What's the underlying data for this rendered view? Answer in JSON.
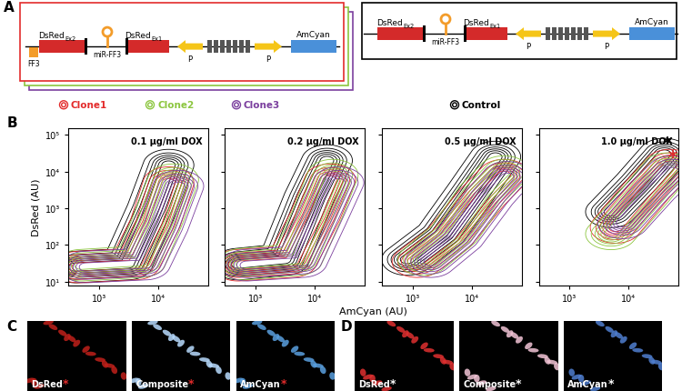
{
  "panel_labels": [
    "A",
    "B",
    "C",
    "D"
  ],
  "diagram": {
    "elements": {
      "utr": "FF3",
      "exon2": {
        "text": "DsRed",
        "sub": "Ex2"
      },
      "mirna": "miR-FF3",
      "exon1": {
        "text": "DsRed",
        "sub": "Ex1"
      },
      "promoter": "P",
      "reporter": "AmCyan"
    },
    "constructs": [
      {
        "name": "Clone1",
        "color": "#e32b2b",
        "utr": true
      },
      {
        "name": "Clone2",
        "color": "#8cc63f",
        "utr": true
      },
      {
        "name": "Clone3",
        "color": "#7b3f9e",
        "utr": true
      },
      {
        "name": "Control",
        "color": "#000000",
        "utr": false
      }
    ]
  },
  "xlabel": "AmCyan (AU)",
  "chart_data": [
    {
      "type": "contour",
      "title": "0.1 µg/ml DOX",
      "ylabel": "DsRed (AU)",
      "log": true,
      "xlim": [
        300,
        70000
      ],
      "ylim": [
        8,
        150000
      ],
      "xticks": [
        {
          "value": 1000,
          "label": "10³"
        },
        {
          "value": 10000,
          "label": "10⁴"
        }
      ],
      "yticks": [
        {
          "value": 10,
          "label": "10¹"
        },
        {
          "value": 100,
          "label": "10²"
        },
        {
          "value": 1000,
          "label": "10³"
        },
        {
          "value": 10000,
          "label": "10⁴"
        },
        {
          "value": 100000,
          "label": "10⁵"
        }
      ],
      "series": [
        {
          "color": "#000000",
          "trend": [
            [
              400,
              25
            ],
            [
              3000,
              30
            ],
            [
              8000,
              1000
            ],
            [
              15000,
              15000
            ]
          ],
          "spread": 0.2
        },
        {
          "color": "#e32b2b",
          "trend": [
            [
              450,
              25
            ],
            [
              4000,
              30
            ],
            [
              9000,
              400
            ],
            [
              15000,
              5000
            ]
          ],
          "spread": 0.2
        },
        {
          "color": "#8cc63f",
          "trend": [
            [
              500,
              28
            ],
            [
              5000,
              35
            ],
            [
              10000,
              500
            ],
            [
              18000,
              6000
            ]
          ],
          "spread": 0.2
        },
        {
          "color": "#7b3f9e",
          "trend": [
            [
              600,
              25
            ],
            [
              6000,
              30
            ],
            [
              12000,
              300
            ],
            [
              22000,
              4000
            ]
          ],
          "spread": 0.2
        }
      ]
    },
    {
      "type": "contour",
      "title": "0.2 µg/ml DOX",
      "log": true,
      "tick_labels": "x",
      "xlim": [
        300,
        70000
      ],
      "ylim": [
        8,
        150000
      ],
      "xticks": [
        {
          "value": 1000,
          "label": "10³"
        },
        {
          "value": 10000,
          "label": "10⁴"
        }
      ],
      "yticks": [
        10,
        100,
        1000,
        10000,
        100000
      ],
      "series": [
        {
          "color": "#000000",
          "trend": [
            [
              500,
              30
            ],
            [
              3000,
              40
            ],
            [
              8000,
              2000
            ],
            [
              16000,
              20000
            ]
          ],
          "spread": 0.2
        },
        {
          "color": "#e32b2b",
          "trend": [
            [
              500,
              28
            ],
            [
              4000,
              35
            ],
            [
              10000,
              600
            ],
            [
              18000,
              6000
            ]
          ],
          "spread": 0.2
        },
        {
          "color": "#8cc63f",
          "trend": [
            [
              600,
              30
            ],
            [
              5000,
              40
            ],
            [
              11000,
              700
            ],
            [
              20000,
              8000
            ]
          ],
          "spread": 0.2
        },
        {
          "color": "#7b3f9e",
          "trend": [
            [
              700,
              28
            ],
            [
              6000,
              35
            ],
            [
              13000,
              500
            ],
            [
              25000,
              5000
            ]
          ],
          "spread": 0.2
        }
      ]
    },
    {
      "type": "contour",
      "title": "0.5 µg/ml DOX",
      "log": true,
      "tick_labels": "x",
      "xlim": [
        300,
        70000
      ],
      "ylim": [
        8,
        150000
      ],
      "xticks": [
        {
          "value": 1000,
          "label": "10³"
        },
        {
          "value": 10000,
          "label": "10⁴"
        }
      ],
      "yticks": [
        10,
        100,
        1000,
        10000,
        100000
      ],
      "series": [
        {
          "color": "#000000",
          "trend": [
            [
              800,
              40
            ],
            [
              3000,
              200
            ],
            [
              10000,
              3000
            ],
            [
              25000,
              25000
            ]
          ],
          "spread": 0.2
        },
        {
          "color": "#e32b2b",
          "trend": [
            [
              1200,
              35
            ],
            [
              4000,
              150
            ],
            [
              15000,
              2000
            ],
            [
              35000,
              8000
            ]
          ],
          "spread": 0.2
        },
        {
          "color": "#8cc63f",
          "trend": [
            [
              1500,
              40
            ],
            [
              5000,
              200
            ],
            [
              15000,
              2500
            ],
            [
              35000,
              10000
            ]
          ],
          "spread": 0.2
        },
        {
          "color": "#7b3f9e",
          "trend": [
            [
              2000,
              35
            ],
            [
              6000,
              150
            ],
            [
              20000,
              2000
            ],
            [
              40000,
              7000
            ]
          ],
          "spread": 0.2
        }
      ]
    },
    {
      "type": "contour",
      "title": "1.0 µg/ml DOX",
      "log": true,
      "tick_labels": "x",
      "xlim": [
        300,
        70000
      ],
      "ylim": [
        8,
        150000
      ],
      "xticks": [
        {
          "value": 1000,
          "label": "10³"
        },
        {
          "value": 10000,
          "label": "10⁴"
        }
      ],
      "yticks": [
        10,
        100,
        1000,
        10000,
        100000
      ],
      "series": [
        {
          "color": "#000000",
          "trend": [
            [
              5000,
              800
            ],
            [
              15000,
              5000
            ],
            [
              40000,
              30000
            ]
          ],
          "spread": 0.2
        },
        {
          "color": "#e32b2b",
          "trend": [
            [
              6000,
              300
            ],
            [
              20000,
              3000
            ],
            [
              50000,
              15000
            ]
          ],
          "spread": 0.2
        },
        {
          "color": "#8cc63f",
          "trend": [
            [
              5000,
              200
            ],
            [
              20000,
              2500
            ],
            [
              45000,
              12000
            ]
          ],
          "spread": 0.2
        },
        {
          "color": "#7b3f9e",
          "trend": [
            [
              8000,
              400
            ],
            [
              25000,
              3000
            ],
            [
              55000,
              10000
            ]
          ],
          "spread": 0.2
        }
      ],
      "annotations": [
        {
          "text": "*",
          "color": "#000000",
          "x": 45000,
          "y": 60000
        },
        {
          "text": "*",
          "color": "#e32b2b",
          "x": 55000,
          "y": 25000
        }
      ]
    }
  ],
  "images": [
    {
      "channels": [
        "DsRed",
        "Composite",
        "AmCyan"
      ],
      "asterisk": "*",
      "asterisk_color": "#e32b2b"
    },
    {
      "channels": [
        "DsRed",
        "Composite",
        "AmCyan"
      ],
      "asterisk": "*",
      "asterisk_color": "#ffffff"
    }
  ]
}
